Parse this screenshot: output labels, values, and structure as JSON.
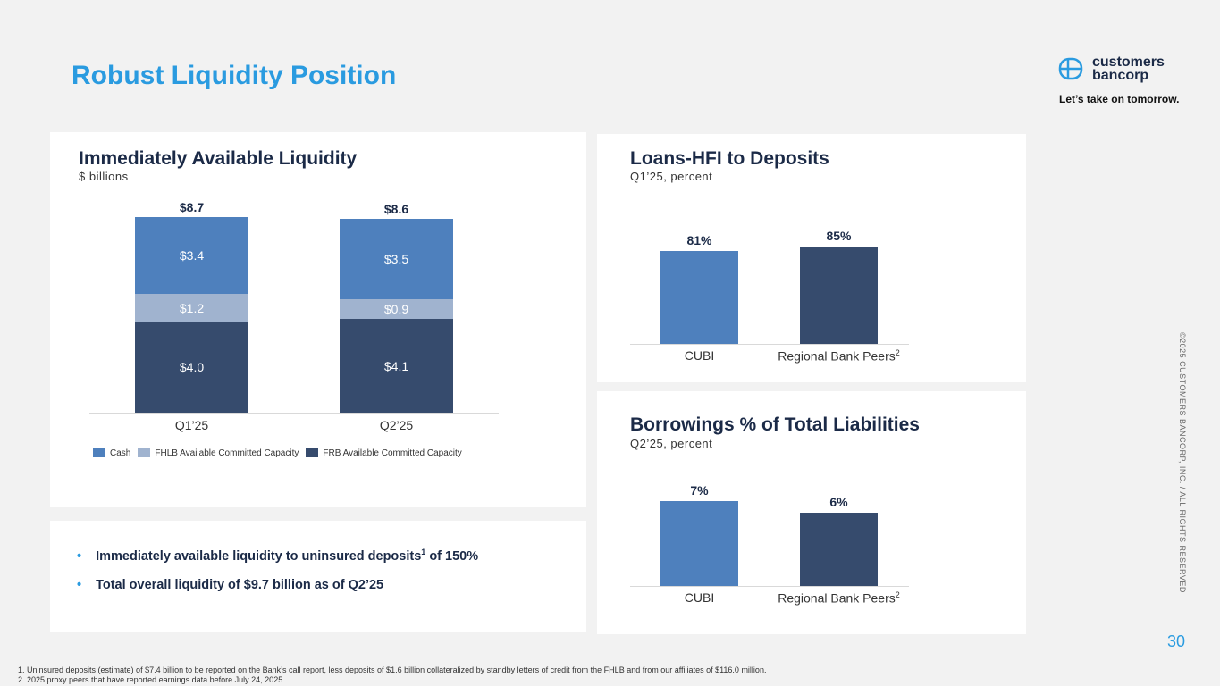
{
  "page": {
    "title": "Robust Liquidity Position",
    "page_number": "30",
    "copyright": "©2025 CUSTOMERS BANCORP, INC. / ALL RIGHTS RESERVED"
  },
  "logo": {
    "line1": "customers",
    "line2": "bancorp",
    "tagline": "Let’s take on tomorrow."
  },
  "bullets": [
    "Immediately available liquidity to uninsured deposits",
    "of 150%",
    "Total overall liquidity of $9.7 billion as of Q2’25"
  ],
  "bullet_sup": "1",
  "footnotes": [
    "1.   Uninsured deposits (estimate) of $7.4 billion to be reported on the Bank’s call report, less deposits of $1.6 billion collateralized by standby letters of credit from the FHLB and from our affiliates of $116.0 million.",
    "2.   2025 proxy peers that have reported earnings data before July 24, 2025."
  ],
  "colors": {
    "cash": "#4e80bd",
    "fhlb": "#a0b3cf",
    "frb": "#364b6d",
    "title": "#2a9be0"
  },
  "chart_data": [
    {
      "type": "bar",
      "stacked": true,
      "title": "Immediately Available Liquidity",
      "subtitle": "$ billions",
      "categories": [
        "Q1’25",
        "Q2’25"
      ],
      "totals": [
        "$8.7",
        "$8.6"
      ],
      "series": [
        {
          "name": "FRB Available Committed Capacity",
          "values": [
            4.0,
            4.1
          ],
          "labels": [
            "$4.0",
            "$4.1"
          ]
        },
        {
          "name": "FHLB Available Committed Capacity",
          "values": [
            1.2,
            0.9
          ],
          "labels": [
            "$1.2",
            "$0.9"
          ]
        },
        {
          "name": "Cash",
          "values": [
            3.4,
            3.5
          ],
          "labels": [
            "$3.4",
            "$3.5"
          ]
        }
      ],
      "legend": [
        "Cash",
        "FHLB Available Committed Capacity",
        "FRB Available Committed Capacity"
      ],
      "legend_position": "bottom"
    },
    {
      "type": "bar",
      "title": "Loans-HFI to Deposits",
      "subtitle": "Q1’25, percent",
      "categories": [
        "CUBI",
        "Regional Bank Peers"
      ],
      "category_sup": [
        "",
        "2"
      ],
      "values": [
        81,
        85
      ],
      "labels": [
        "81%",
        "85%"
      ]
    },
    {
      "type": "bar",
      "title": "Borrowings % of Total Liabilities",
      "subtitle": "Q2’25, percent",
      "categories": [
        "CUBI",
        "Regional Bank Peers"
      ],
      "category_sup": [
        "",
        "2"
      ],
      "values": [
        7,
        6
      ],
      "labels": [
        "7%",
        "6%"
      ]
    }
  ]
}
